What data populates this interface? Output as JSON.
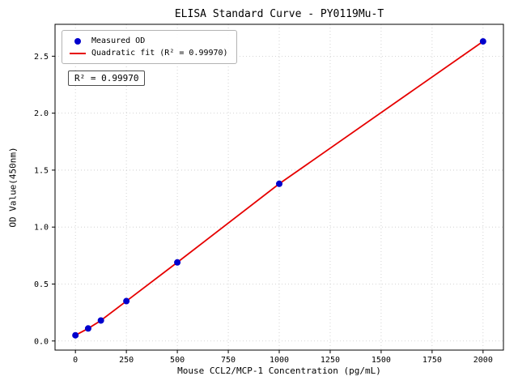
{
  "chart_data": {
    "type": "scatter",
    "title": "ELISA Standard Curve - PY0119Mu-T",
    "xlabel": "Mouse CCL2/MCP-1 Concentration (pg/mL)",
    "ylabel": "OD Value(450nm)",
    "xlim": [
      -100,
      2100
    ],
    "ylim": [
      -0.08,
      2.78
    ],
    "xticks": [
      0,
      250,
      500,
      750,
      1000,
      1250,
      1500,
      1750,
      2000
    ],
    "yticks": [
      0.0,
      0.5,
      1.0,
      1.5,
      2.0,
      2.5
    ],
    "grid": true,
    "grid_style": "dotted",
    "legend_position": "upper-left",
    "annotation": "R² = 0.99970",
    "series": [
      {
        "name": "Measured OD",
        "type": "scatter",
        "color": "#0000cd",
        "x": [
          0,
          62.5,
          125,
          250,
          500,
          1000,
          2000
        ],
        "y": [
          0.05,
          0.11,
          0.18,
          0.35,
          0.69,
          1.38,
          2.63
        ]
      },
      {
        "name": "Quadratic fit (R² = 0.99970)",
        "type": "line",
        "color": "#e60000",
        "x": [
          0,
          62.5,
          125,
          250,
          500,
          1000,
          2000
        ],
        "y": [
          0.05,
          0.11,
          0.18,
          0.35,
          0.69,
          1.38,
          2.63
        ]
      }
    ]
  }
}
